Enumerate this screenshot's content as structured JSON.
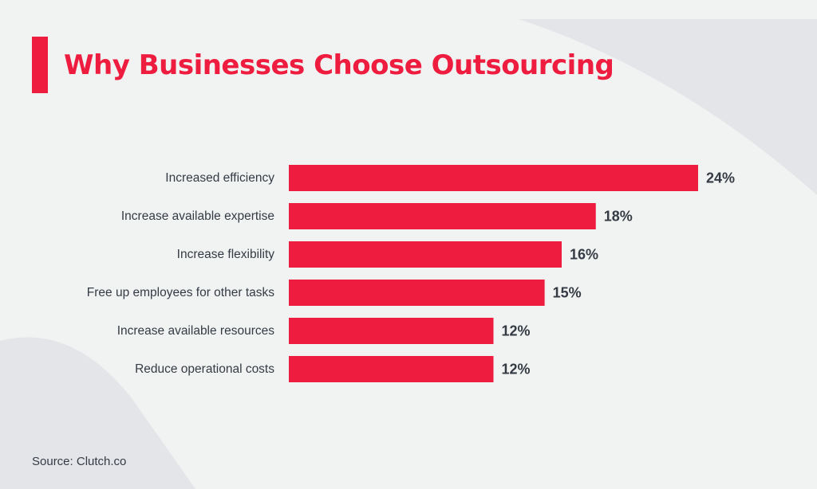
{
  "title": "Why Businesses Choose Outsourcing",
  "source": "Source: Clutch.co",
  "colors": {
    "accent": "#ee1c3e",
    "text": "#353b44",
    "background": "#f1f2f2"
  },
  "chart_data": {
    "type": "bar",
    "orientation": "horizontal",
    "title": "Why Businesses Choose Outsourcing",
    "xlabel": "",
    "ylabel": "",
    "categories": [
      "Increased efficiency",
      "Increase available expertise",
      "Increase flexibility",
      "Free up employees for other tasks",
      "Increase available resources",
      "Reduce operational costs"
    ],
    "values": [
      24,
      18,
      16,
      15,
      12,
      12
    ],
    "value_labels": [
      "24%",
      "18%",
      "16%",
      "15%",
      "12%",
      "12%"
    ],
    "unit": "%",
    "grid": false,
    "legend": "none"
  }
}
